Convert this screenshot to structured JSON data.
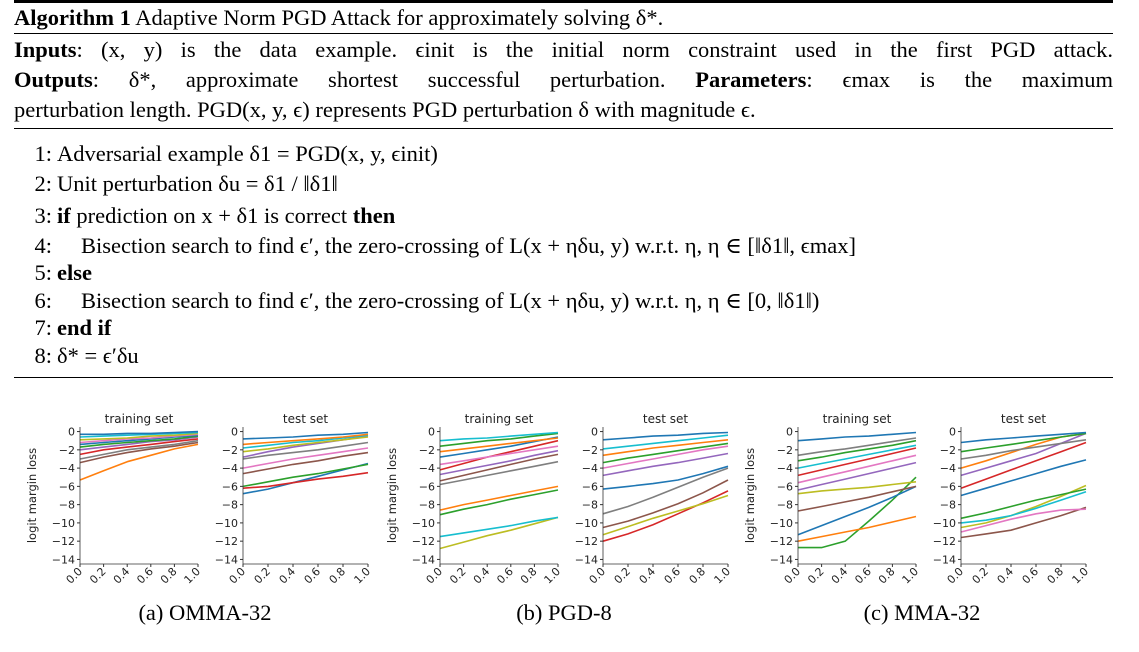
{
  "algorithm": {
    "label": "Algorithm 1",
    "title": "Adaptive Norm PGD Attack for approximately solving δ*.",
    "inputs_label": "Inputs",
    "inputs_text": ": (x, y) is the data example. ϵinit is the initial norm constraint used in the first PGD attack.",
    "outputs_label": "Outputs",
    "outputs_text": ": δ*, approximate shortest successful perturbation.",
    "parameters_label": "Parameters",
    "parameters_text": ": ϵmax is the maximum",
    "params_line2": "perturbation length. PGD(x, y, ϵ) represents PGD perturbation δ with magnitude ϵ.",
    "steps": [
      {
        "num": "1:",
        "text": "Adversarial example δ1 = PGD(x, y, ϵinit)"
      },
      {
        "num": "2:",
        "text": "Unit perturbation δu = δ1 / ‖δ1‖"
      },
      {
        "num": "3:",
        "kw1": "if",
        "text": "prediction on x + δ1 is correct",
        "kw2": "then"
      },
      {
        "num": "4:",
        "text": "Bisection search to find ϵ′, the zero-crossing of L(x + ηδu, y) w.r.t. η, η ∈ [‖δ1‖, ϵmax]"
      },
      {
        "num": "5:",
        "kw1": "else"
      },
      {
        "num": "6:",
        "text": "Bisection search to find ϵ′, the zero-crossing of L(x + ηδu, y) w.r.t. η, η ∈ [0, ‖δ1‖)"
      },
      {
        "num": "7:",
        "kw1": "end if"
      },
      {
        "num": "8:",
        "text": "δ* = ϵ′δu"
      }
    ]
  },
  "figures": [
    {
      "caption": "(a) OMMA-32",
      "ylabel": "logit margin loss",
      "panels": [
        "training set",
        "test set"
      ]
    },
    {
      "caption": "(b) PGD-8",
      "ylabel": "logit margin loss",
      "panels": [
        "training set",
        "test set"
      ]
    },
    {
      "caption": "(c) MMA-32",
      "ylabel": "logit margin loss",
      "panels": [
        "training set",
        "test set"
      ]
    }
  ],
  "chart_data": [
    {
      "type": "line",
      "title": "training set",
      "figure": "(a) OMMA-32",
      "x": [
        0.0,
        0.2,
        0.4,
        0.6,
        0.8,
        1.0
      ],
      "ylabel": "logit margin loss",
      "ylim": [
        -14.5,
        0.5
      ],
      "xlim": [
        0.0,
        1.0
      ],
      "xticks": [
        "0.0",
        "0.2",
        "0.4",
        "0.6",
        "0.8",
        "1.0"
      ],
      "yticks": [
        "0",
        "−2",
        "−4",
        "−6",
        "−8",
        "−10",
        "−12",
        "−14"
      ],
      "series": [
        {
          "color": "#ff7f0e",
          "values": [
            -5.3,
            -4.3,
            -3.3,
            -2.6,
            -1.9,
            -1.4
          ]
        },
        {
          "color": "#8c564b",
          "values": [
            -3.4,
            -2.8,
            -2.3,
            -1.9,
            -1.6,
            -1.2
          ]
        },
        {
          "color": "#7f7f7f",
          "values": [
            -3.0,
            -2.5,
            -2.0,
            -1.7,
            -1.4,
            -1.0
          ]
        },
        {
          "color": "#d62728",
          "values": [
            -2.5,
            -2.0,
            -1.7,
            -1.4,
            -1.1,
            -0.8
          ]
        },
        {
          "color": "#9467bd",
          "values": [
            -2.0,
            -1.7,
            -1.4,
            -1.1,
            -0.9,
            -0.6
          ]
        },
        {
          "color": "#2ca02c",
          "values": [
            -1.7,
            -1.4,
            -1.2,
            -1.0,
            -0.8,
            -0.5
          ]
        },
        {
          "color": "#1f77b4",
          "values": [
            -1.4,
            -1.2,
            -1.0,
            -0.8,
            -0.6,
            -0.4
          ]
        },
        {
          "color": "#e377c2",
          "values": [
            -1.2,
            -1.0,
            -0.8,
            -0.7,
            -0.5,
            -0.3
          ]
        },
        {
          "color": "#bcbd22",
          "values": [
            -0.9,
            -0.8,
            -0.7,
            -0.5,
            -0.4,
            -0.2
          ]
        },
        {
          "color": "#17becf",
          "values": [
            -0.6,
            -0.5,
            -0.4,
            -0.3,
            -0.2,
            -0.1
          ]
        },
        {
          "color": "#1f77b4",
          "values": [
            -0.3,
            -0.3,
            -0.2,
            -0.2,
            -0.1,
            0.0
          ]
        }
      ]
    },
    {
      "type": "line",
      "title": "test set",
      "figure": "(a) OMMA-32",
      "x": [
        0.0,
        0.2,
        0.4,
        0.6,
        0.8,
        1.0
      ],
      "ylabel": "",
      "ylim": [
        -14.5,
        0.5
      ],
      "xlim": [
        0.0,
        1.0
      ],
      "xticks": [
        "0.0",
        "0.2",
        "0.4",
        "0.6",
        "0.8",
        "1.0"
      ],
      "yticks": [
        "0",
        "−2",
        "−4",
        "−6",
        "−8",
        "−10",
        "−12",
        "−14"
      ],
      "series": [
        {
          "color": "#1f77b4",
          "values": [
            -6.8,
            -6.3,
            -5.6,
            -4.9,
            -4.2,
            -3.5
          ]
        },
        {
          "color": "#d62728",
          "values": [
            -6.2,
            -6.0,
            -5.6,
            -5.2,
            -4.9,
            -4.5
          ]
        },
        {
          "color": "#2ca02c",
          "values": [
            -6.0,
            -5.5,
            -5.0,
            -4.6,
            -4.1,
            -3.6
          ]
        },
        {
          "color": "#8c564b",
          "values": [
            -4.6,
            -4.1,
            -3.6,
            -3.2,
            -2.7,
            -2.3
          ]
        },
        {
          "color": "#e377c2",
          "values": [
            -4.0,
            -3.5,
            -3.0,
            -2.6,
            -2.2,
            -1.8
          ]
        },
        {
          "color": "#7f7f7f",
          "values": [
            -3.0,
            -2.6,
            -2.3,
            -2.0,
            -1.6,
            -1.2
          ]
        },
        {
          "color": "#9467bd",
          "values": [
            -2.8,
            -2.2,
            -1.7,
            -1.3,
            -0.9,
            -0.5
          ]
        },
        {
          "color": "#bcbd22",
          "values": [
            -2.2,
            -1.9,
            -1.5,
            -1.2,
            -0.9,
            -0.6
          ]
        },
        {
          "color": "#17becf",
          "values": [
            -1.8,
            -1.5,
            -1.2,
            -1.0,
            -0.7,
            -0.4
          ]
        },
        {
          "color": "#ff7f0e",
          "values": [
            -1.4,
            -1.2,
            -1.0,
            -0.8,
            -0.6,
            -0.3
          ]
        },
        {
          "color": "#1f77b4",
          "values": [
            -0.8,
            -0.7,
            -0.6,
            -0.4,
            -0.3,
            -0.1
          ]
        }
      ]
    },
    {
      "type": "line",
      "title": "training set",
      "figure": "(b) PGD-8",
      "x": [
        0.0,
        0.2,
        0.4,
        0.6,
        0.8,
        1.0
      ],
      "ylabel": "logit margin loss",
      "ylim": [
        -14.5,
        0.5
      ],
      "xlim": [
        0.0,
        1.0
      ],
      "xticks": [
        "0.0",
        "0.2",
        "0.4",
        "0.6",
        "0.8",
        "1.0"
      ],
      "yticks": [
        "0",
        "−2",
        "−4",
        "−6",
        "−8",
        "−10",
        "−12",
        "−14"
      ],
      "series": [
        {
          "color": "#bcbd22",
          "values": [
            -12.8,
            -12.1,
            -11.4,
            -10.8,
            -10.1,
            -9.4
          ]
        },
        {
          "color": "#17becf",
          "values": [
            -11.5,
            -11.1,
            -10.7,
            -10.3,
            -9.8,
            -9.4
          ]
        },
        {
          "color": "#2ca02c",
          "values": [
            -9.1,
            -8.5,
            -8.0,
            -7.4,
            -6.9,
            -6.4
          ]
        },
        {
          "color": "#ff7f0e",
          "values": [
            -8.6,
            -8.0,
            -7.5,
            -7.0,
            -6.5,
            -6.0
          ]
        },
        {
          "color": "#7f7f7f",
          "values": [
            -5.8,
            -5.3,
            -4.8,
            -4.3,
            -3.8,
            -3.3
          ]
        },
        {
          "color": "#8c564b",
          "values": [
            -5.4,
            -4.8,
            -4.2,
            -3.6,
            -3.0,
            -2.5
          ]
        },
        {
          "color": "#9467bd",
          "values": [
            -4.7,
            -4.2,
            -3.7,
            -3.2,
            -2.6,
            -2.1
          ]
        },
        {
          "color": "#d62728",
          "values": [
            -4.2,
            -3.5,
            -2.8,
            -2.2,
            -1.6,
            -1.0
          ]
        },
        {
          "color": "#e377c2",
          "values": [
            -3.6,
            -3.2,
            -2.8,
            -2.4,
            -2.0,
            -1.6
          ]
        },
        {
          "color": "#1f77b4",
          "values": [
            -2.8,
            -2.4,
            -2.0,
            -1.6,
            -1.1,
            -0.6
          ]
        },
        {
          "color": "#ff7f0e",
          "values": [
            -2.2,
            -1.9,
            -1.6,
            -1.3,
            -1.0,
            -0.7
          ]
        },
        {
          "color": "#2ca02c",
          "values": [
            -1.6,
            -1.3,
            -1.0,
            -0.8,
            -0.5,
            -0.2
          ]
        },
        {
          "color": "#17becf",
          "values": [
            -1.0,
            -0.8,
            -0.7,
            -0.5,
            -0.3,
            -0.1
          ]
        }
      ]
    },
    {
      "type": "line",
      "title": "test set",
      "figure": "(b) PGD-8",
      "x": [
        0.0,
        0.2,
        0.4,
        0.6,
        0.8,
        1.0
      ],
      "ylabel": "",
      "ylim": [
        -14.5,
        0.5
      ],
      "xlim": [
        0.0,
        1.0
      ],
      "xticks": [
        "0.0",
        "0.2",
        "0.4",
        "0.6",
        "0.8",
        "1.0"
      ],
      "yticks": [
        "0",
        "−2",
        "−4",
        "−6",
        "−8",
        "−10",
        "−12",
        "−14"
      ],
      "series": [
        {
          "color": "#d62728",
          "values": [
            -12.0,
            -11.2,
            -10.2,
            -9.0,
            -7.8,
            -6.5
          ]
        },
        {
          "color": "#bcbd22",
          "values": [
            -11.3,
            -10.4,
            -9.5,
            -8.7,
            -7.9,
            -7.0
          ]
        },
        {
          "color": "#8c564b",
          "values": [
            -10.5,
            -9.8,
            -8.9,
            -7.9,
            -6.7,
            -5.3
          ]
        },
        {
          "color": "#7f7f7f",
          "values": [
            -9.0,
            -8.2,
            -7.2,
            -6.1,
            -5.0,
            -4.0
          ]
        },
        {
          "color": "#1f77b4",
          "values": [
            -6.3,
            -6.0,
            -5.7,
            -5.3,
            -4.6,
            -3.8
          ]
        },
        {
          "color": "#9467bd",
          "values": [
            -4.8,
            -4.3,
            -3.8,
            -3.4,
            -2.9,
            -2.4
          ]
        },
        {
          "color": "#e377c2",
          "values": [
            -4.0,
            -3.5,
            -3.0,
            -2.5,
            -2.0,
            -1.6
          ]
        },
        {
          "color": "#2ca02c",
          "values": [
            -3.4,
            -2.9,
            -2.5,
            -2.1,
            -1.7,
            -1.3
          ]
        },
        {
          "color": "#ff7f0e",
          "values": [
            -2.6,
            -2.2,
            -1.8,
            -1.5,
            -1.2,
            -0.9
          ]
        },
        {
          "color": "#17becf",
          "values": [
            -1.9,
            -1.6,
            -1.3,
            -1.0,
            -0.7,
            -0.4
          ]
        },
        {
          "color": "#1f77b4",
          "values": [
            -0.9,
            -0.7,
            -0.5,
            -0.4,
            -0.2,
            -0.1
          ]
        }
      ]
    },
    {
      "type": "line",
      "title": "training set",
      "figure": "(c) MMA-32",
      "x": [
        0.0,
        0.2,
        0.4,
        0.6,
        0.8,
        1.0
      ],
      "ylabel": "logit margin loss",
      "ylim": [
        -14.5,
        0.5
      ],
      "xlim": [
        0.0,
        1.0
      ],
      "xticks": [
        "0.0",
        "0.2",
        "0.4",
        "0.6",
        "0.8",
        "1.0"
      ],
      "yticks": [
        "0",
        "−2",
        "−4",
        "−6",
        "−8",
        "−10",
        "−12",
        "−14"
      ],
      "series": [
        {
          "color": "#2ca02c",
          "values": [
            -12.7,
            -12.7,
            -12.0,
            -9.8,
            -7.5,
            -5.0
          ]
        },
        {
          "color": "#ff7f0e",
          "values": [
            -12.0,
            -11.5,
            -11.0,
            -10.5,
            -9.9,
            -9.3
          ]
        },
        {
          "color": "#1f77b4",
          "values": [
            -11.3,
            -10.3,
            -9.3,
            -8.3,
            -7.2,
            -6.0
          ]
        },
        {
          "color": "#8c564b",
          "values": [
            -8.7,
            -8.2,
            -7.7,
            -7.2,
            -6.6,
            -6.0
          ]
        },
        {
          "color": "#bcbd22",
          "values": [
            -6.8,
            -6.5,
            -6.3,
            -6.1,
            -5.8,
            -5.5
          ]
        },
        {
          "color": "#9467bd",
          "values": [
            -6.4,
            -5.8,
            -5.2,
            -4.6,
            -4.0,
            -3.4
          ]
        },
        {
          "color": "#e377c2",
          "values": [
            -5.6,
            -5.0,
            -4.4,
            -3.8,
            -3.2,
            -2.6
          ]
        },
        {
          "color": "#d62728",
          "values": [
            -4.8,
            -4.2,
            -3.6,
            -3.0,
            -2.4,
            -1.8
          ]
        },
        {
          "color": "#17becf",
          "values": [
            -4.0,
            -3.5,
            -3.0,
            -2.5,
            -2.0,
            -1.5
          ]
        },
        {
          "color": "#2ca02c",
          "values": [
            -3.2,
            -2.8,
            -2.3,
            -1.9,
            -1.5,
            -1.0
          ]
        },
        {
          "color": "#7f7f7f",
          "values": [
            -2.6,
            -2.2,
            -1.9,
            -1.5,
            -1.1,
            -0.7
          ]
        },
        {
          "color": "#1f77b4",
          "values": [
            -1.0,
            -0.8,
            -0.6,
            -0.5,
            -0.3,
            -0.1
          ]
        }
      ]
    },
    {
      "type": "line",
      "title": "test set",
      "figure": "(c) MMA-32",
      "x": [
        0.0,
        0.2,
        0.4,
        0.6,
        0.8,
        1.0
      ],
      "ylabel": "",
      "ylim": [
        -14.5,
        0.5
      ],
      "xlim": [
        0.0,
        1.0
      ],
      "xticks": [
        "0.0",
        "0.2",
        "0.4",
        "0.6",
        "0.8",
        "1.0"
      ],
      "yticks": [
        "0",
        "−2",
        "−4",
        "−6",
        "−8",
        "−10",
        "−12",
        "−14"
      ],
      "series": [
        {
          "color": "#8c564b",
          "values": [
            -11.6,
            -11.2,
            -10.8,
            -10.0,
            -9.2,
            -8.3
          ]
        },
        {
          "color": "#e377c2",
          "values": [
            -11.0,
            -10.3,
            -9.6,
            -9.0,
            -8.6,
            -8.5
          ]
        },
        {
          "color": "#bcbd22",
          "values": [
            -10.5,
            -10.0,
            -9.2,
            -8.2,
            -7.1,
            -5.9
          ]
        },
        {
          "color": "#17becf",
          "values": [
            -10.0,
            -9.7,
            -9.2,
            -8.4,
            -7.5,
            -6.6
          ]
        },
        {
          "color": "#2ca02c",
          "values": [
            -9.5,
            -8.9,
            -8.2,
            -7.5,
            -6.9,
            -6.3
          ]
        },
        {
          "color": "#1f77b4",
          "values": [
            -7.0,
            -6.2,
            -5.4,
            -4.6,
            -3.8,
            -3.1
          ]
        },
        {
          "color": "#d62728",
          "values": [
            -6.2,
            -5.2,
            -4.2,
            -3.2,
            -2.2,
            -1.2
          ]
        },
        {
          "color": "#9467bd",
          "values": [
            -4.8,
            -4.0,
            -3.2,
            -2.4,
            -1.3,
            -0.2
          ]
        },
        {
          "color": "#ff7f0e",
          "values": [
            -4.0,
            -3.2,
            -2.3,
            -1.4,
            -0.6,
            -0.2
          ]
        },
        {
          "color": "#7f7f7f",
          "values": [
            -3.0,
            -2.6,
            -2.1,
            -1.7,
            -1.3,
            -0.9
          ]
        },
        {
          "color": "#2ca02c",
          "values": [
            -2.2,
            -1.8,
            -1.4,
            -1.0,
            -0.6,
            -0.2
          ]
        },
        {
          "color": "#1f77b4",
          "values": [
            -1.2,
            -0.9,
            -0.7,
            -0.5,
            -0.3,
            -0.1
          ]
        }
      ]
    }
  ]
}
